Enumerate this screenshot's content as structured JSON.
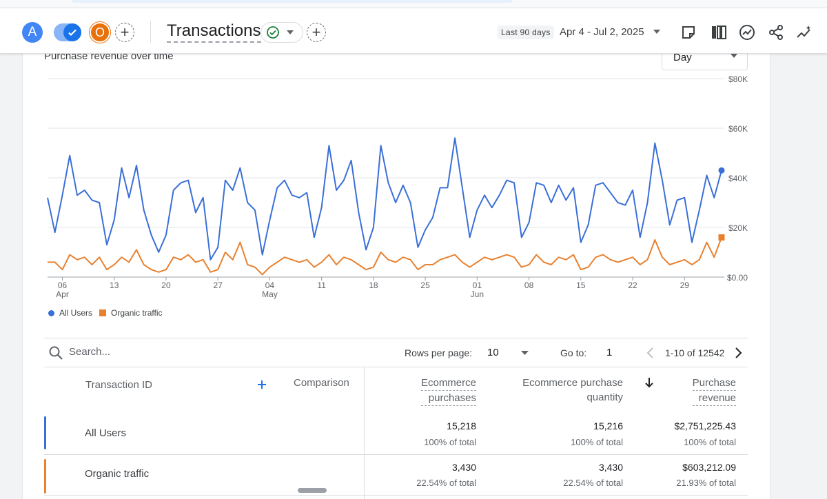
{
  "header": {
    "avatar_a": "A",
    "avatar_o": "O",
    "report_title": "Transactions",
    "date_label": "Last 90 days",
    "date_range": "Apr 4 - Jul 2, 2025"
  },
  "icons": [
    "check-toggle-icon",
    "add-comparison-icon",
    "status-check-icon",
    "chevron-down-icon",
    "edit-comparison-icon",
    "note-icon",
    "compare-columns-icon",
    "insights-icon",
    "share-icon",
    "sparkle-trend-icon",
    "search-icon",
    "chevron-left-icon",
    "chevron-right-icon",
    "sort-down-icon",
    "add-dimension-icon"
  ],
  "chart": {
    "title": "Purchase revenue over time",
    "granularity": "Day"
  },
  "chart_data": {
    "type": "line",
    "x_start": "2025-04-04",
    "x_end": "2025-07-02",
    "x_ticks": [
      {
        "day": "06",
        "month": "Apr"
      },
      {
        "day": "13",
        "month": ""
      },
      {
        "day": "20",
        "month": ""
      },
      {
        "day": "27",
        "month": ""
      },
      {
        "day": "04",
        "month": "May"
      },
      {
        "day": "11",
        "month": ""
      },
      {
        "day": "18",
        "month": ""
      },
      {
        "day": "25",
        "month": ""
      },
      {
        "day": "01",
        "month": "Jun"
      },
      {
        "day": "08",
        "month": ""
      },
      {
        "day": "15",
        "month": ""
      },
      {
        "day": "22",
        "month": ""
      },
      {
        "day": "29",
        "month": ""
      }
    ],
    "y_ticks": [
      "$80K",
      "$60K",
      "$40K",
      "$20K",
      "$0.00"
    ],
    "ylim": [
      0,
      80000
    ],
    "grid": true,
    "legend_position": "bottom-left",
    "series": [
      {
        "name": "All Users",
        "color": "#3a6fd8",
        "values": [
          32000,
          18000,
          33000,
          49000,
          33000,
          35000,
          31000,
          30000,
          13000,
          23000,
          44000,
          32000,
          45000,
          27000,
          17000,
          10000,
          17000,
          35000,
          38000,
          39000,
          26000,
          32000,
          7000,
          12000,
          39000,
          35000,
          44000,
          30000,
          27000,
          9000,
          23000,
          36000,
          39000,
          33000,
          32000,
          34000,
          16000,
          28000,
          53000,
          35000,
          39000,
          47000,
          26000,
          11000,
          20000,
          53000,
          38000,
          30000,
          37000,
          30000,
          12000,
          19000,
          24000,
          36000,
          36000,
          56000,
          36000,
          16000,
          27000,
          33000,
          28000,
          33000,
          39000,
          38000,
          16000,
          22000,
          38000,
          37000,
          30000,
          37000,
          31000,
          36000,
          14000,
          21000,
          37000,
          38000,
          34000,
          30000,
          29000,
          35000,
          16000,
          30000,
          54000,
          39000,
          21000,
          31000,
          32000,
          14000,
          27000,
          41000,
          32000,
          43000
        ]
      },
      {
        "name": "Organic traffic",
        "color": "#e8802e",
        "values": [
          6000,
          6000,
          3000,
          9000,
          7000,
          8000,
          5000,
          8000,
          3000,
          5000,
          8000,
          6000,
          11000,
          5000,
          3000,
          2000,
          3000,
          8000,
          7000,
          9000,
          6000,
          7000,
          2000,
          3000,
          10000,
          7000,
          14000,
          5000,
          4000,
          1000,
          4000,
          6000,
          8000,
          7000,
          6000,
          7000,
          4000,
          6000,
          9000,
          5000,
          8000,
          7000,
          5000,
          3000,
          4000,
          10000,
          7000,
          6000,
          8000,
          7000,
          3000,
          5000,
          5000,
          7000,
          8000,
          9000,
          6000,
          4000,
          6000,
          8000,
          7000,
          8000,
          9000,
          8000,
          4000,
          5000,
          9000,
          6000,
          5000,
          8000,
          7000,
          9000,
          3000,
          4000,
          8000,
          9000,
          7000,
          6000,
          7000,
          8000,
          5000,
          7000,
          15000,
          8000,
          5000,
          6000,
          7000,
          5000,
          7000,
          14000,
          8000,
          16000
        ]
      }
    ]
  },
  "table": {
    "search_placeholder": "Search...",
    "rows_per_page_label": "Rows per page:",
    "rows_per_page_value": "10",
    "go_to_label": "Go to:",
    "go_to_value": "1",
    "page_range": "1-10 of 12542",
    "headers": {
      "transaction_id": "Transaction ID",
      "comparison": "Comparison",
      "ecommerce_purchases_1": "Ecommerce",
      "ecommerce_purchases_2": "purchases",
      "purchase_quantity_1": "Ecommerce purchase",
      "purchase_quantity_2": "quantity",
      "purchase_revenue_1": "Purchase",
      "purchase_revenue_2": "revenue"
    },
    "rows": [
      {
        "label": "All Users",
        "purchases": "15,218",
        "purchases_pct": "100% of total",
        "quantity": "15,216",
        "quantity_pct": "100% of total",
        "revenue": "$2,751,225.43",
        "revenue_pct": "100% of total",
        "color": "#3a6fd8"
      },
      {
        "label": "Organic traffic",
        "purchases": "3,430",
        "purchases_pct": "22.54% of total",
        "quantity": "3,430",
        "quantity_pct": "22.54% of total",
        "revenue": "$603,212.09",
        "revenue_pct": "21.93% of total",
        "color": "#e8802e"
      }
    ]
  }
}
